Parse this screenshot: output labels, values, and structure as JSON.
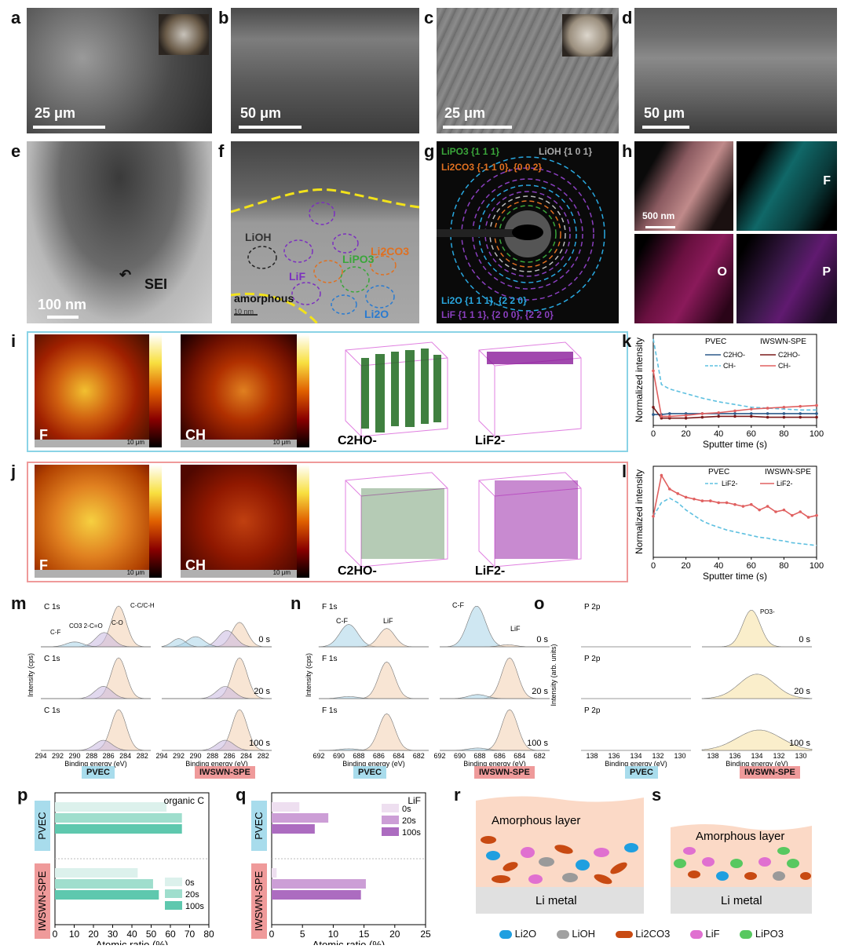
{
  "panels": {
    "a": {
      "letter": "a",
      "scale": "25 μm"
    },
    "b": {
      "letter": "b",
      "scale": "50 μm"
    },
    "c": {
      "letter": "c",
      "scale": "25 μm"
    },
    "d": {
      "letter": "d",
      "scale": "50 μm"
    },
    "e": {
      "letter": "e",
      "scale": "100 nm",
      "sei": "SEI"
    },
    "f": {
      "letter": "f",
      "scale": "10 nm",
      "labels": [
        "LiOH",
        "LiF",
        "LiPO3",
        "Li2CO3",
        "amorphous",
        "Li2O"
      ]
    },
    "g": {
      "letter": "g",
      "l1": "LiPO3 {1 1 1}",
      "l2": "LiOH {1 0 1}",
      "l3": "Li2CO3 {-1 1 0}, {0 0 2}",
      "l4": "Li2O {1 1 1}, {2 2 0}",
      "l5": "LiF {1 1 1}, {2 0 0}, {2 2 0}"
    },
    "h": {
      "letter": "h",
      "scale": "500 nm",
      "F": "F",
      "O": "O",
      "P": "P"
    },
    "i": {
      "letter": "i",
      "maps": [
        "F",
        "CH"
      ],
      "scale": "10 μm",
      "r1": "C2HO-",
      "r2": "LiF2-"
    },
    "j": {
      "letter": "j",
      "maps": [
        "F",
        "CH"
      ],
      "scale": "10 μm",
      "r1": "C2HO-",
      "r2": "LiF2-"
    },
    "k": {
      "letter": "k",
      "ylabel": "Normalized intensity",
      "xlabel": "Sputter time (s)",
      "leg_pvec": "PVEC",
      "leg_iws": "IWSWN-SPE",
      "s1": "C2HO-",
      "s2": "CH-"
    },
    "l": {
      "letter": "l",
      "ylabel": "Normalized intensity",
      "xlabel": "Sputter time (s)",
      "leg_pvec": "PVEC",
      "leg_iws": "IWSWN-SPE",
      "s": "LiF2-"
    },
    "m": {
      "letter": "m",
      "title": "C 1s",
      "ylabel": "Intensity (cps)",
      "xlabel": "Binding energy (eV)",
      "times": [
        "0 s",
        "20 s",
        "100 s"
      ],
      "peaks": [
        "C-F",
        "CO3 2-",
        "C=O",
        "C-O",
        "C-C/C-H"
      ]
    },
    "n": {
      "letter": "n",
      "title": "F 1s",
      "ylabel": "Intensity (cps)",
      "xlabel": "Binding energy (eV)",
      "times": [
        "0 s",
        "20 s",
        "100 s"
      ],
      "peaks": [
        "C-F",
        "LiF"
      ]
    },
    "o": {
      "letter": "o",
      "title": "P 2p",
      "ylabel": "Intensity (arb. units)",
      "xlabel": "Binding energy (eV)",
      "times": [
        "0 s",
        "20 s",
        "100 s"
      ],
      "peak": "PO3-"
    },
    "p": {
      "letter": "p",
      "title": "organic C",
      "xlabel": "Atomic ratio (%)",
      "legend": [
        "0s",
        "20s",
        "100s"
      ]
    },
    "q": {
      "letter": "q",
      "title": "LiF",
      "xlabel": "Atomic ratio (%)",
      "legend": [
        "0s",
        "20s",
        "100s"
      ]
    },
    "r": {
      "letter": "r",
      "layer": "Amorphous layer",
      "metal": "Li metal"
    },
    "s": {
      "letter": "s",
      "layer": "Amorphous layer",
      "metal": "Li metal"
    },
    "legend_r": [
      "Li2O",
      "LiOH",
      "Li2CO3",
      "LiF",
      "LiPO3"
    ],
    "tags": {
      "pvec": "PVEC",
      "iws": "IWSWN-SPE"
    }
  },
  "chart_data": [
    {
      "type": "line",
      "title": "",
      "xlabel": "Sputter time (s)",
      "ylabel": "Normalized intensity",
      "xlim": [
        0,
        100
      ],
      "x": [
        0,
        5,
        10,
        20,
        30,
        40,
        50,
        60,
        70,
        80,
        90,
        100
      ],
      "series": [
        {
          "name": "PVEC C2HO-",
          "values": [
            0.12,
            0.12,
            0.13,
            0.13,
            0.13,
            0.13,
            0.13,
            0.13,
            0.13,
            0.13,
            0.13,
            0.13
          ]
        },
        {
          "name": "PVEC CH-",
          "values": [
            0.95,
            0.45,
            0.4,
            0.35,
            0.3,
            0.26,
            0.23,
            0.2,
            0.19,
            0.18,
            0.17,
            0.17
          ]
        },
        {
          "name": "IWSWN-SPE C2HO-",
          "values": [
            0.2,
            0.08,
            0.08,
            0.08,
            0.09,
            0.1,
            0.1,
            0.1,
            0.09,
            0.09,
            0.09,
            0.09
          ]
        },
        {
          "name": "IWSWN-SPE CH-",
          "values": [
            0.6,
            0.1,
            0.1,
            0.11,
            0.13,
            0.14,
            0.16,
            0.18,
            0.19,
            0.2,
            0.21,
            0.22
          ]
        }
      ]
    },
    {
      "type": "line",
      "title": "",
      "xlabel": "Sputter time (s)",
      "ylabel": "Normalized intensity",
      "xlim": [
        0,
        100
      ],
      "x": [
        0,
        5,
        10,
        15,
        20,
        25,
        30,
        35,
        40,
        45,
        50,
        55,
        60,
        65,
        70,
        75,
        80,
        85,
        90,
        95,
        100
      ],
      "series": [
        {
          "name": "PVEC LiF2-",
          "values": [
            0.45,
            0.6,
            0.65,
            0.6,
            0.52,
            0.46,
            0.4,
            0.36,
            0.33,
            0.3,
            0.28,
            0.26,
            0.24,
            0.22,
            0.21,
            0.19,
            0.18,
            0.16,
            0.15,
            0.14,
            0.13
          ]
        },
        {
          "name": "IWSWN-SPE LiF2-",
          "values": [
            0.45,
            0.9,
            0.75,
            0.7,
            0.66,
            0.64,
            0.62,
            0.62,
            0.6,
            0.6,
            0.58,
            0.56,
            0.58,
            0.52,
            0.56,
            0.5,
            0.52,
            0.46,
            0.5,
            0.44,
            0.46
          ]
        }
      ]
    },
    {
      "type": "bar",
      "title": "organic C",
      "xlabel": "Atomic ratio (%)",
      "xlim": [
        0,
        80
      ],
      "categories": [
        "PVEC",
        "IWSWN-SPE"
      ],
      "series": [
        {
          "name": "0s",
          "values": [
            58,
            43
          ]
        },
        {
          "name": "20s",
          "values": [
            66,
            51
          ]
        },
        {
          "name": "100s",
          "values": [
            66,
            54
          ]
        }
      ]
    },
    {
      "type": "bar",
      "title": "LiF",
      "xlabel": "Atomic ratio (%)",
      "xlim": [
        0,
        25
      ],
      "categories": [
        "PVEC",
        "IWSWN-SPE"
      ],
      "series": [
        {
          "name": "0s",
          "values": [
            4.5,
            0.8
          ]
        },
        {
          "name": "20s",
          "values": [
            9.2,
            15.3
          ]
        },
        {
          "name": "100s",
          "values": [
            7.0,
            14.5
          ]
        }
      ]
    }
  ]
}
